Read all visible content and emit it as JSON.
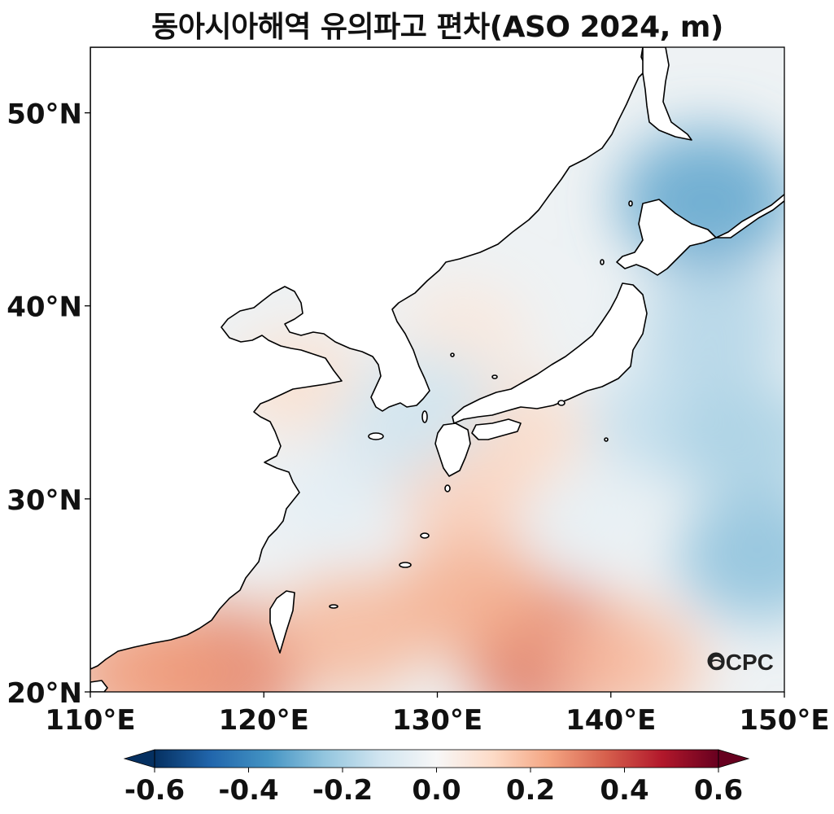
{
  "title": "동아시아해역 유의파고 편차(ASO 2024, m)",
  "logo_text": "OCPC",
  "map": {
    "lon_range": [
      110,
      150
    ],
    "lat_range": [
      20,
      53.4
    ],
    "lat_ticks": [
      {
        "value": 50,
        "label": "50°N"
      },
      {
        "value": 40,
        "label": "40°N"
      },
      {
        "value": 30,
        "label": "30°N"
      },
      {
        "value": 20,
        "label": "20°N"
      }
    ],
    "lon_ticks": [
      {
        "value": 110,
        "label": "110°E"
      },
      {
        "value": 120,
        "label": "120°E"
      },
      {
        "value": 130,
        "label": "130°E"
      },
      {
        "value": 140,
        "label": "140°E"
      },
      {
        "value": 150,
        "label": "150°E"
      }
    ]
  },
  "colorbar": {
    "min": -0.6,
    "max": 0.6,
    "extend": "both",
    "colormap": "RdBu_r",
    "ticks": [
      {
        "value": -0.6,
        "label": "-0.6"
      },
      {
        "value": -0.4,
        "label": "-0.4"
      },
      {
        "value": -0.2,
        "label": "-0.2"
      },
      {
        "value": 0.0,
        "label": "0.0"
      },
      {
        "value": 0.2,
        "label": "0.2"
      },
      {
        "value": 0.4,
        "label": "0.4"
      },
      {
        "value": 0.6,
        "label": "0.6"
      }
    ],
    "stops": [
      "#053061",
      "#2166ac",
      "#4393c3",
      "#92c5de",
      "#d1e5f0",
      "#f7f7f7",
      "#fddbc7",
      "#f4a582",
      "#d6604d",
      "#b2182b",
      "#67001f"
    ]
  },
  "anomaly_field": [
    {
      "lon": 117.5,
      "lat": 21.0,
      "value": 0.3
    },
    {
      "lon": 113.0,
      "lat": 21.0,
      "value": 0.25
    },
    {
      "lon": 125.0,
      "lat": 23.0,
      "value": 0.2
    },
    {
      "lon": 136.5,
      "lat": 22.0,
      "value": 0.33
    },
    {
      "lon": 132.0,
      "lat": 25.0,
      "value": 0.22
    },
    {
      "lon": 141.0,
      "lat": 21.5,
      "value": 0.18
    },
    {
      "lon": 122.0,
      "lat": 36.0,
      "value": 0.1
    },
    {
      "lon": 131.5,
      "lat": 30.8,
      "value": 0.15
    },
    {
      "lon": 134.5,
      "lat": 33.3,
      "value": 0.12
    },
    {
      "lon": 131.5,
      "lat": 38.5,
      "value": 0.07
    },
    {
      "lon": 124.0,
      "lat": 30.0,
      "value": -0.06
    },
    {
      "lon": 127.5,
      "lat": 33.5,
      "value": -0.1
    },
    {
      "lon": 129.5,
      "lat": 35.0,
      "value": -0.12
    },
    {
      "lon": 145.5,
      "lat": 45.5,
      "value": -0.32
    },
    {
      "lon": 148.5,
      "lat": 27.0,
      "value": -0.25
    },
    {
      "lon": 143.0,
      "lat": 34.0,
      "value": -0.15
    },
    {
      "lon": 146.0,
      "lat": 39.0,
      "value": -0.18
    },
    {
      "lon": 138.5,
      "lat": 29.0,
      "value": -0.05
    },
    {
      "lon": 148.0,
      "lat": 33.0,
      "value": -0.2
    }
  ]
}
